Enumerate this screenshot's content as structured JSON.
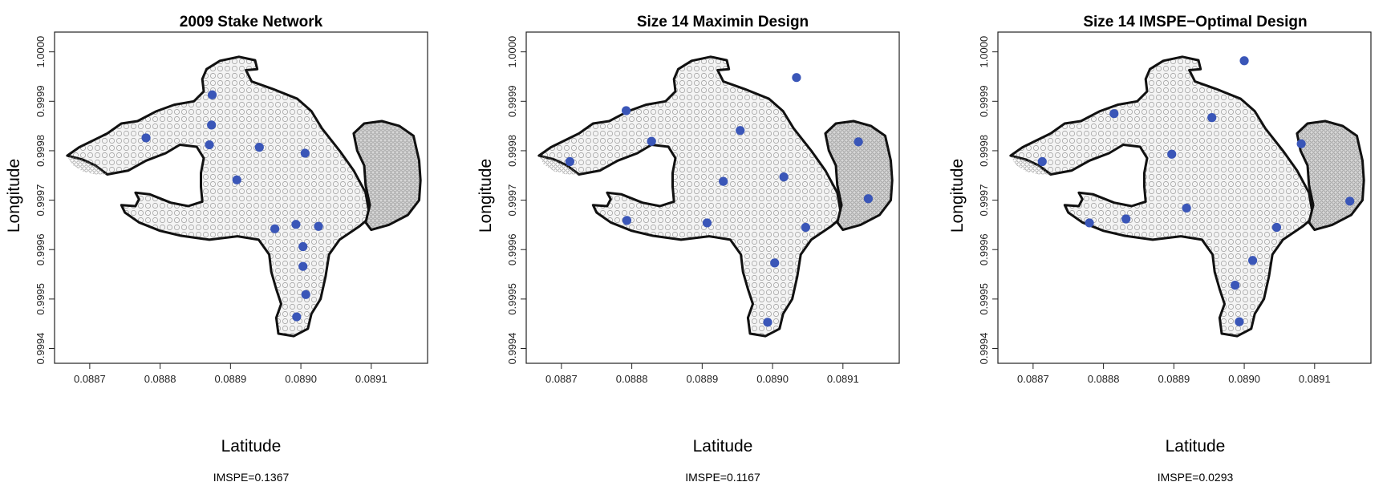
{
  "chart_data": [
    {
      "type": "scatter",
      "title": "2009 Stake Network",
      "xlabel": "Latitude",
      "ylabel": "Longitude",
      "xlim": [
        0.08865,
        0.08918
      ],
      "ylim": [
        0.99937,
        1.00004
      ],
      "xticks": [
        "0.0887",
        "0.0888",
        "0.0889",
        "0.0890",
        "0.0891"
      ],
      "yticks": [
        "0.9994",
        "0.9995",
        "0.9996",
        "0.9997",
        "0.9998",
        "0.9999",
        "1.0000"
      ],
      "caption": "IMSPE=0.1367",
      "points_color": "#3a56b8",
      "points": [
        {
          "x": 0.088874,
          "y": 0.999913
        },
        {
          "x": 0.088873,
          "y": 0.999852
        },
        {
          "x": 0.08878,
          "y": 0.999826
        },
        {
          "x": 0.08887,
          "y": 0.999812
        },
        {
          "x": 0.088941,
          "y": 0.999807
        },
        {
          "x": 0.089006,
          "y": 0.999795
        },
        {
          "x": 0.088909,
          "y": 0.999741
        },
        {
          "x": 0.088993,
          "y": 0.999651
        },
        {
          "x": 0.089025,
          "y": 0.999647
        },
        {
          "x": 0.088963,
          "y": 0.999642
        },
        {
          "x": 0.089003,
          "y": 0.999606
        },
        {
          "x": 0.089003,
          "y": 0.999566
        },
        {
          "x": 0.089007,
          "y": 0.999509
        },
        {
          "x": 0.088994,
          "y": 0.999464
        }
      ]
    },
    {
      "type": "scatter",
      "title": "Size 14 Maximin Design",
      "xlabel": "Latitude",
      "ylabel": "Longitude",
      "xlim": [
        0.08865,
        0.08918
      ],
      "ylim": [
        0.99937,
        1.00004
      ],
      "xticks": [
        "0.0887",
        "0.0888",
        "0.0889",
        "0.0890",
        "0.0891"
      ],
      "yticks": [
        "0.9994",
        "0.9995",
        "0.9996",
        "0.9997",
        "0.9998",
        "0.9999",
        "1.0000"
      ],
      "caption": "IMSPE=0.1167",
      "points_color": "#3a56b8",
      "points": [
        {
          "x": 0.089034,
          "y": 0.999948
        },
        {
          "x": 0.088792,
          "y": 0.999881
        },
        {
          "x": 0.088954,
          "y": 0.999841
        },
        {
          "x": 0.088828,
          "y": 0.999819
        },
        {
          "x": 0.089122,
          "y": 0.999818
        },
        {
          "x": 0.088712,
          "y": 0.999778
        },
        {
          "x": 0.089016,
          "y": 0.999747
        },
        {
          "x": 0.08893,
          "y": 0.999738
        },
        {
          "x": 0.089136,
          "y": 0.999703
        },
        {
          "x": 0.088793,
          "y": 0.999659
        },
        {
          "x": 0.088907,
          "y": 0.999654
        },
        {
          "x": 0.089047,
          "y": 0.999645
        },
        {
          "x": 0.089003,
          "y": 0.999573
        },
        {
          "x": 0.088993,
          "y": 0.999453
        }
      ]
    },
    {
      "type": "scatter",
      "title": "Size 14 IMSPE−Optimal Design",
      "xlabel": "Latitude",
      "ylabel": "Longitude",
      "xlim": [
        0.08865,
        0.08918
      ],
      "ylim": [
        0.99937,
        1.00004
      ],
      "xticks": [
        "0.0887",
        "0.0888",
        "0.0889",
        "0.0890",
        "0.0891"
      ],
      "yticks": [
        "0.9994",
        "0.9995",
        "0.9996",
        "0.9997",
        "0.9998",
        "0.9999",
        "1.0000"
      ],
      "caption": "IMSPE=0.0293",
      "points_color": "#3a56b8",
      "points": [
        {
          "x": 0.089,
          "y": 0.999982
        },
        {
          "x": 0.088815,
          "y": 0.999875
        },
        {
          "x": 0.088954,
          "y": 0.999867
        },
        {
          "x": 0.088897,
          "y": 0.999793
        },
        {
          "x": 0.089081,
          "y": 0.999814
        },
        {
          "x": 0.088713,
          "y": 0.999778
        },
        {
          "x": 0.08915,
          "y": 0.999698
        },
        {
          "x": 0.088918,
          "y": 0.999684
        },
        {
          "x": 0.088832,
          "y": 0.999662
        },
        {
          "x": 0.08878,
          "y": 0.999654
        },
        {
          "x": 0.089046,
          "y": 0.999645
        },
        {
          "x": 0.089012,
          "y": 0.999578
        },
        {
          "x": 0.088987,
          "y": 0.999528
        },
        {
          "x": 0.088993,
          "y": 0.999454
        }
      ]
    }
  ],
  "region": {
    "main_boundary": [
      [
        0.088685,
        0.999807
      ],
      [
        0.088725,
        0.999835
      ],
      [
        0.088745,
        0.999855
      ],
      [
        0.088768,
        0.99986
      ],
      [
        0.088795,
        0.99988
      ],
      [
        0.08882,
        0.999893
      ],
      [
        0.088848,
        0.9999
      ],
      [
        0.088862,
        0.99992
      ],
      [
        0.08886,
        0.999945
      ],
      [
        0.088866,
        0.999965
      ],
      [
        0.088885,
        0.999982
      ],
      [
        0.088912,
        0.99999
      ],
      [
        0.088935,
        0.999983
      ],
      [
        0.088938,
        0.999965
      ],
      [
        0.088922,
        0.999963
      ],
      [
        0.08893,
        0.99994
      ],
      [
        0.08896,
        0.999925
      ],
      [
        0.088995,
        0.999905
      ],
      [
        0.089015,
        0.99988
      ],
      [
        0.08903,
        0.999845
      ],
      [
        0.089055,
        0.9998
      ],
      [
        0.089075,
        0.99976
      ],
      [
        0.089092,
        0.999715
      ],
      [
        0.089098,
        0.999665
      ],
      [
        0.089083,
        0.999647
      ],
      [
        0.089055,
        0.99962
      ],
      [
        0.08904,
        0.99959
      ],
      [
        0.089035,
        0.999545
      ],
      [
        0.089028,
        0.9995
      ],
      [
        0.089015,
        0.99947
      ],
      [
        0.08901,
        0.99944
      ],
      [
        0.08899,
        0.999425
      ],
      [
        0.088968,
        0.99943
      ],
      [
        0.088965,
        0.999462
      ],
      [
        0.088972,
        0.99949
      ],
      [
        0.088965,
        0.99952
      ],
      [
        0.088958,
        0.999555
      ],
      [
        0.088955,
        0.99959
      ],
      [
        0.08894,
        0.99962
      ],
      [
        0.08891,
        0.999627
      ],
      [
        0.08887,
        0.99962
      ],
      [
        0.08883,
        0.999628
      ],
      [
        0.0888,
        0.999638
      ],
      [
        0.08877,
        0.999655
      ],
      [
        0.08875,
        0.999675
      ],
      [
        0.088745,
        0.99969
      ],
      [
        0.088765,
        0.999688
      ],
      [
        0.08877,
        0.999702
      ],
      [
        0.088765,
        0.999715
      ],
      [
        0.088785,
        0.999712
      ],
      [
        0.088815,
        0.999695
      ],
      [
        0.08884,
        0.999688
      ],
      [
        0.08886,
        0.999697
      ],
      [
        0.088858,
        0.999727
      ],
      [
        0.088858,
        0.999755
      ],
      [
        0.088862,
        0.999785
      ],
      [
        0.088852,
        0.999808
      ],
      [
        0.088828,
        0.999812
      ],
      [
        0.088808,
        0.999795
      ],
      [
        0.08878,
        0.99978
      ],
      [
        0.088755,
        0.99976
      ],
      [
        0.088725,
        0.999752
      ],
      [
        0.088708,
        0.99977
      ],
      [
        0.08869,
        0.999782
      ],
      [
        0.088668,
        0.99979
      ]
    ],
    "lobe_boundary": [
      [
        0.089075,
        0.999835
      ],
      [
        0.08909,
        0.999855
      ],
      [
        0.089115,
        0.99986
      ],
      [
        0.08914,
        0.99985
      ],
      [
        0.08916,
        0.99983
      ],
      [
        0.089168,
        0.99978
      ],
      [
        0.08917,
        0.99974
      ],
      [
        0.089168,
        0.9997
      ],
      [
        0.089152,
        0.99967
      ],
      [
        0.089125,
        0.99965
      ],
      [
        0.0891,
        0.99964
      ],
      [
        0.089092,
        0.999655
      ],
      [
        0.089098,
        0.99969
      ],
      [
        0.089092,
        0.99973
      ],
      [
        0.08909,
        0.99977
      ],
      [
        0.08908,
        0.9998
      ]
    ],
    "dense_west": [
      [
        0.088668,
        0.99979
      ],
      [
        0.08869,
        0.999782
      ],
      [
        0.088708,
        0.99977
      ],
      [
        0.088725,
        0.999752
      ],
      [
        0.088708,
        0.999752
      ],
      [
        0.08869,
        0.999758
      ],
      [
        0.088675,
        0.999772
      ]
    ],
    "colors": {
      "outline": "#111111",
      "fill": "#f4f4f4",
      "dense": "#d7d7d7",
      "mesh": "#9a9a9a"
    }
  }
}
